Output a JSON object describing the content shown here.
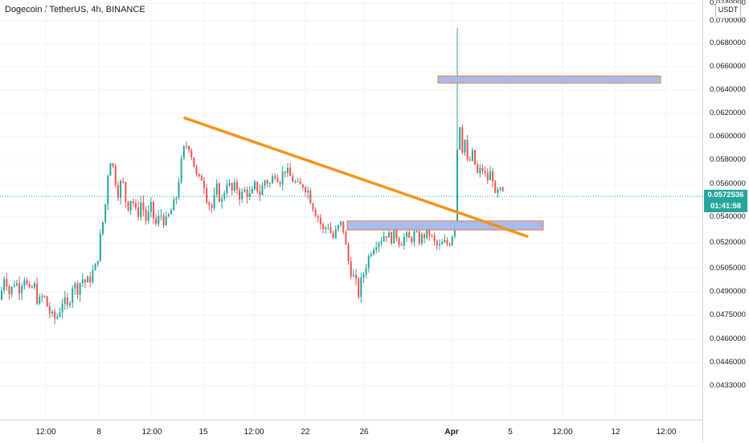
{
  "header": {
    "title": "Dogecoin / TetherUS, 4h, BINANCE"
  },
  "axis": {
    "currency": "USDT",
    "y_ticks": [
      "0.0740000",
      "0.0700000",
      "0.0680000",
      "0.0660000",
      "0.0640000",
      "0.0620000",
      "0.0600000",
      "0.0580000",
      "0.0560000",
      "0.0540000",
      "0.0520000",
      "0.0505000",
      "0.0490000",
      "0.0475000",
      "0.0460000",
      "0.0446000",
      "0.0433000"
    ],
    "x_ticks": [
      "12:00",
      "8",
      "12:00",
      "15",
      "12:00",
      "22",
      "26",
      "Apr",
      "5",
      "12:00",
      "12",
      "12:00"
    ]
  },
  "price_tag": {
    "price": "0.0572536",
    "countdown": "01:41:58",
    "color": "#26a69a"
  },
  "colors": {
    "up": "#26a69a",
    "down": "#ef5350",
    "trendline": "#f7931a",
    "zone_fill": "#9fb8f0",
    "zone_border": "#f07a3c",
    "price_line": "#26a69a"
  },
  "chart_data": {
    "type": "candlestick",
    "symbol": "Dogecoin / TetherUS",
    "timeframe": "4h",
    "exchange": "BINANCE",
    "ylim": [
      0.043,
      0.0745
    ],
    "current_price": 0.0572536,
    "price_path": [
      [
        0,
        0.05
      ],
      [
        6,
        0.0518
      ],
      [
        12,
        0.0503
      ],
      [
        18,
        0.0512
      ],
      [
        24,
        0.0508
      ],
      [
        30,
        0.0516
      ],
      [
        36,
        0.0503
      ],
      [
        42,
        0.051
      ],
      [
        48,
        0.0497
      ],
      [
        54,
        0.0503
      ],
      [
        60,
        0.0494
      ],
      [
        66,
        0.0487
      ],
      [
        72,
        0.049
      ],
      [
        78,
        0.05
      ],
      [
        84,
        0.0494
      ],
      [
        90,
        0.051
      ],
      [
        96,
        0.0507
      ],
      [
        102,
        0.0514
      ],
      [
        108,
        0.051
      ],
      [
        114,
        0.0516
      ],
      [
        120,
        0.0522
      ],
      [
        126,
        0.0549
      ],
      [
        132,
        0.0571
      ],
      [
        136,
        0.0603
      ],
      [
        140,
        0.0596
      ],
      [
        146,
        0.0575
      ],
      [
        152,
        0.0583
      ],
      [
        158,
        0.0566
      ],
      [
        164,
        0.0573
      ],
      [
        170,
        0.056
      ],
      [
        176,
        0.057
      ],
      [
        182,
        0.0557
      ],
      [
        188,
        0.0565
      ],
      [
        194,
        0.0554
      ],
      [
        200,
        0.0562
      ],
      [
        206,
        0.0555
      ],
      [
        212,
        0.0563
      ],
      [
        218,
        0.0568
      ],
      [
        222,
        0.0582
      ],
      [
        228,
        0.0608
      ],
      [
        234,
        0.0615
      ],
      [
        240,
        0.06
      ],
      [
        246,
        0.0582
      ],
      [
        252,
        0.0586
      ],
      [
        258,
        0.0571
      ],
      [
        264,
        0.0565
      ],
      [
        270,
        0.0577
      ],
      [
        276,
        0.0569
      ],
      [
        282,
        0.0583
      ],
      [
        288,
        0.0575
      ],
      [
        294,
        0.0579
      ],
      [
        300,
        0.0572
      ],
      [
        306,
        0.0577
      ],
      [
        312,
        0.0571
      ],
      [
        318,
        0.058
      ],
      [
        324,
        0.0574
      ],
      [
        330,
        0.0584
      ],
      [
        336,
        0.058
      ],
      [
        342,
        0.059
      ],
      [
        348,
        0.0583
      ],
      [
        354,
        0.0593
      ],
      [
        360,
        0.0587
      ],
      [
        366,
        0.0582
      ],
      [
        372,
        0.0577
      ],
      [
        378,
        0.0581
      ],
      [
        384,
        0.0575
      ],
      [
        390,
        0.0567
      ],
      [
        396,
        0.056
      ],
      [
        402,
        0.0549
      ],
      [
        408,
        0.0555
      ],
      [
        414,
        0.0543
      ],
      [
        420,
        0.0551
      ],
      [
        426,
        0.0556
      ],
      [
        430,
        0.0538
      ],
      [
        434,
        0.0524
      ],
      [
        438,
        0.0517
      ],
      [
        442,
        0.0511
      ],
      [
        446,
        0.0504
      ],
      [
        450,
        0.0512
      ],
      [
        456,
        0.0524
      ],
      [
        462,
        0.0535
      ],
      [
        468,
        0.0541
      ],
      [
        474,
        0.0543
      ],
      [
        480,
        0.0548
      ],
      [
        486,
        0.0543
      ],
      [
        492,
        0.0548
      ],
      [
        498,
        0.054
      ],
      [
        504,
        0.0545
      ],
      [
        510,
        0.0542
      ],
      [
        516,
        0.0547
      ],
      [
        522,
        0.0542
      ],
      [
        528,
        0.0546
      ],
      [
        534,
        0.0548
      ],
      [
        540,
        0.054
      ],
      [
        546,
        0.0536
      ],
      [
        552,
        0.054
      ],
      [
        558,
        0.0539
      ],
      [
        562,
        0.0545
      ],
      [
        566,
        0.0558
      ],
      [
        568,
        0.056
      ],
      [
        570,
        0.0661
      ],
      [
        574,
        0.0605
      ],
      [
        578,
        0.062
      ],
      [
        582,
        0.0595
      ],
      [
        588,
        0.0605
      ],
      [
        594,
        0.0588
      ],
      [
        600,
        0.0593
      ],
      [
        606,
        0.0583
      ],
      [
        612,
        0.0592
      ],
      [
        616,
        0.057
      ],
      [
        620,
        0.0575
      ],
      [
        626,
        0.0573
      ]
    ],
    "trendline": {
      "from": [
        230,
        0.0636
      ],
      "to": [
        656,
        0.0545
      ]
    },
    "zones": [
      {
        "name": "resistance-zone",
        "x0": 545,
        "x1": 822,
        "y_top": 0.0672,
        "y_bottom": 0.0666
      },
      {
        "name": "support-zone",
        "x0": 432,
        "x1": 676,
        "y_top": 0.0557,
        "y_bottom": 0.055
      }
    ]
  }
}
